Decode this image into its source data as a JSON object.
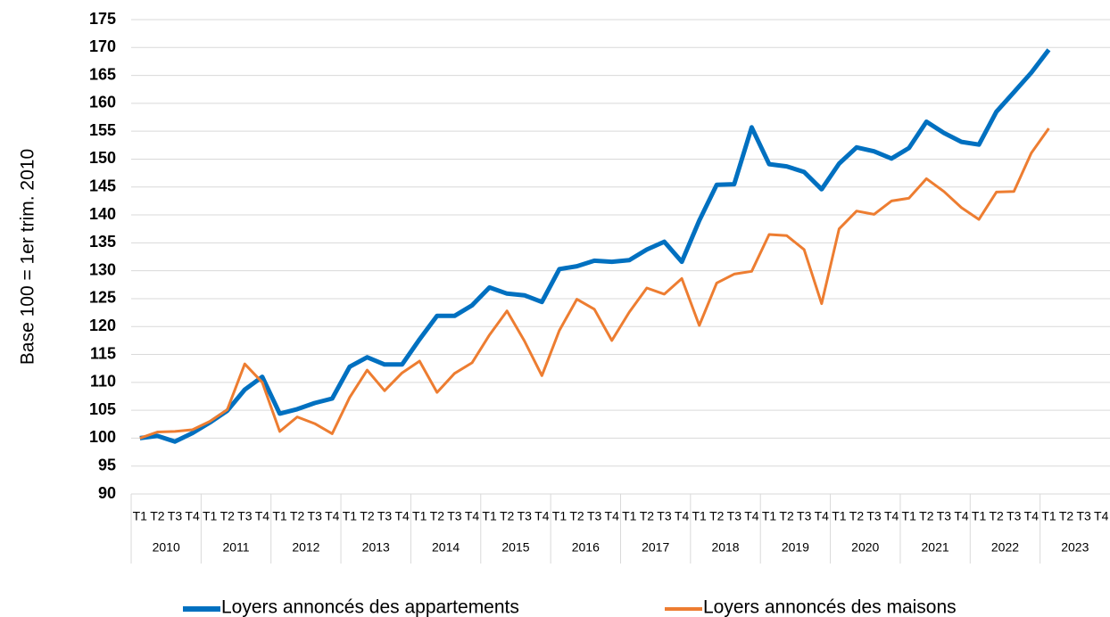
{
  "chart_data": {
    "type": "line",
    "y_label": "Base 100 = 1er trim. 2010",
    "categories": [
      "T1",
      "T2",
      "T3",
      "T4",
      "T1",
      "T2",
      "T3",
      "T4",
      "T1",
      "T2",
      "T3",
      "T4",
      "T1",
      "T2",
      "T3",
      "T4",
      "T1",
      "T2",
      "T3",
      "T4",
      "T1",
      "T2",
      "T3",
      "T4",
      "T1",
      "T2",
      "T3",
      "T4",
      "T1",
      "T2",
      "T3",
      "T4",
      "T1",
      "T2",
      "T3",
      "T4",
      "T1",
      "T2",
      "T3",
      "T4",
      "T1",
      "T2",
      "T3",
      "T4",
      "T1",
      "T2",
      "T3",
      "T4",
      "T1",
      "T2",
      "T3",
      "T4",
      "T1",
      "T2",
      "T3",
      "T4"
    ],
    "years": [
      "2010",
      "2011",
      "2012",
      "2013",
      "2014",
      "2015",
      "2016",
      "2017",
      "2018",
      "2019",
      "2020",
      "2021",
      "2022",
      "2023"
    ],
    "series": [
      {
        "name": "Loyers annoncés des appartements",
        "color": "#0070c0",
        "width": 5,
        "values": [
          100,
          100.4,
          99.4,
          100.9,
          102.8,
          104.9,
          108.7,
          111.0,
          104.4,
          105.2,
          106.3,
          107.1,
          112.8,
          114.5,
          113.2,
          113.2,
          117.7,
          121.9,
          121.9,
          123.8,
          127.0,
          125.9,
          125.6,
          124.4,
          130.3,
          130.8,
          131.8,
          131.6,
          131.9,
          133.8,
          135.2,
          131.6,
          139.0,
          145.4,
          145.5,
          155.7,
          149.1,
          148.7,
          147.7,
          144.6,
          149.2,
          152.1,
          151.4,
          150.1,
          152.0,
          156.7,
          154.7,
          153.1,
          152.6,
          158.5,
          162.0,
          165.5,
          169.6,
          null,
          null,
          null
        ]
      },
      {
        "name": "Loyers annoncés des maisons",
        "color": "#ed7d31",
        "width": 3,
        "values": [
          100,
          101.1,
          101.2,
          101.5,
          103.0,
          105.1,
          113.3,
          110.0,
          101.2,
          103.8,
          102.6,
          100.8,
          107.3,
          112.2,
          108.5,
          111.7,
          113.8,
          108.2,
          111.6,
          113.5,
          118.5,
          122.8,
          117.4,
          111.2,
          119.3,
          124.9,
          123.1,
          117.5,
          122.6,
          126.9,
          125.8,
          128.6,
          120.2,
          127.8,
          129.4,
          129.9,
          136.5,
          136.3,
          133.8,
          124.1,
          137.5,
          140.7,
          140.1,
          142.5,
          143.0,
          146.5,
          144.2,
          141.3,
          139.2,
          144.1,
          144.2,
          151.1,
          155.5,
          null,
          null,
          null
        ]
      }
    ],
    "ylim": [
      90,
      175
    ],
    "yticks": [
      90,
      95,
      100,
      105,
      110,
      115,
      120,
      125,
      130,
      135,
      140,
      145,
      150,
      155,
      160,
      165,
      170,
      175
    ],
    "grid": true
  }
}
